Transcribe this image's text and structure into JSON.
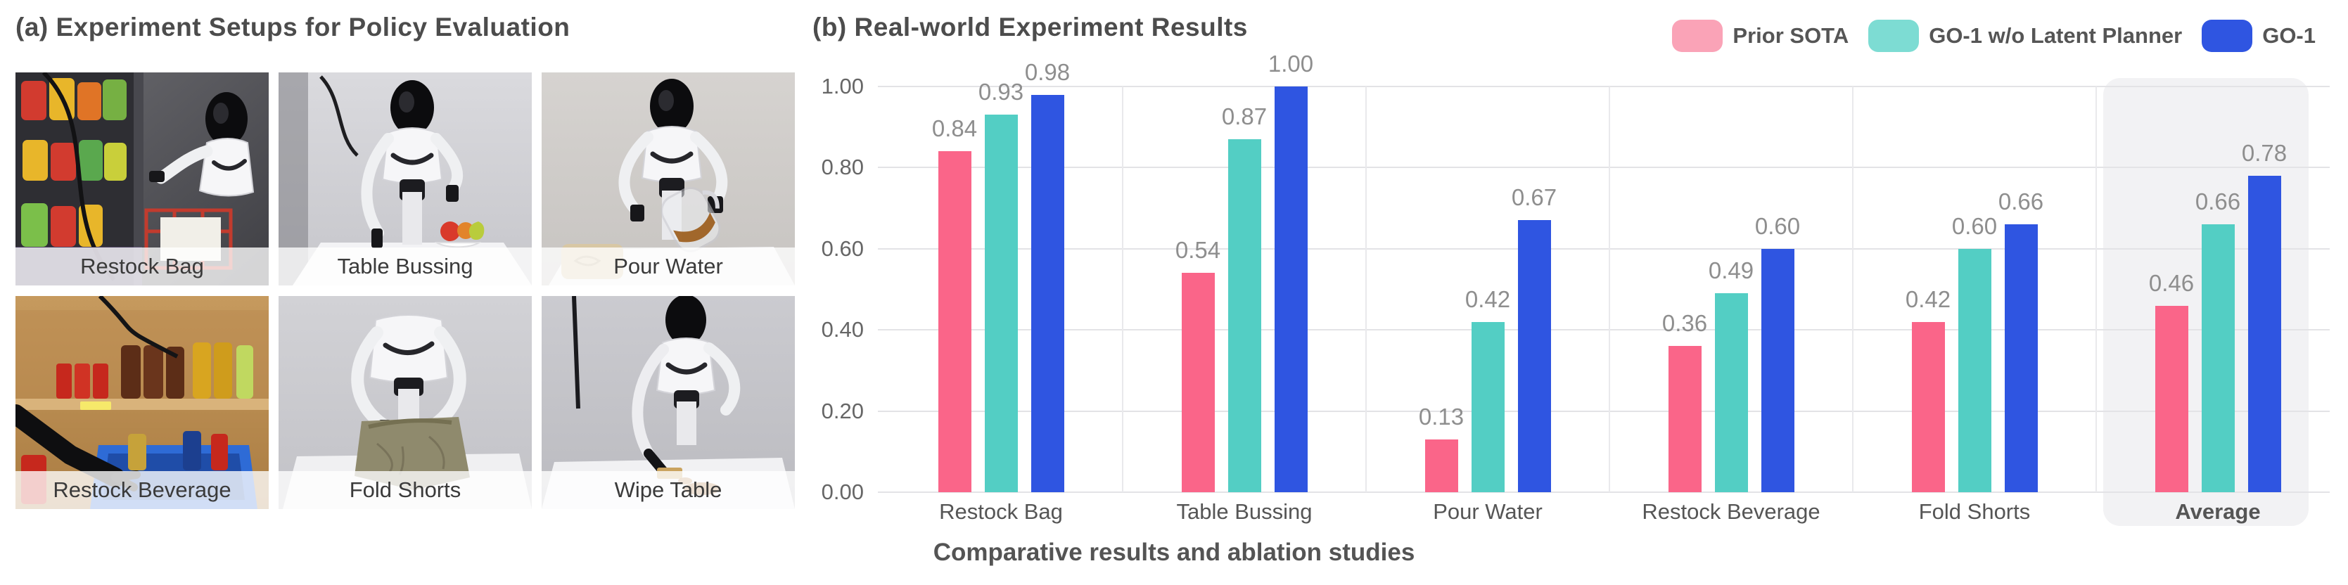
{
  "left": {
    "title": "(a) Experiment Setups for Policy Evaluation",
    "photos": [
      {
        "label": "Restock Bag"
      },
      {
        "label": "Table Bussing"
      },
      {
        "label": "Pour Water"
      },
      {
        "label": "Restock Beverage"
      },
      {
        "label": "Fold Shorts"
      },
      {
        "label": "Wipe Table"
      }
    ]
  },
  "right": {
    "title": "(b) Real-world Experiment Results",
    "caption": "Comparative results and ablation studies"
  },
  "chart_data": {
    "type": "bar",
    "title": "(b) Real-world Experiment Results",
    "categories": [
      "Restock Bag",
      "Table Bussing",
      "Pour Water",
      "Restock Beverage",
      "Fold Shorts",
      "Average"
    ],
    "series": [
      {
        "name": "Prior SOTA",
        "color": "#FA6589",
        "legend_color": "#FAA3B7",
        "values": [
          0.84,
          0.54,
          0.13,
          0.36,
          0.42,
          0.46
        ]
      },
      {
        "name": "GO-1 w/o Latent Planner",
        "color": "#53CEC4",
        "legend_color": "#7DDCD3",
        "values": [
          0.93,
          0.87,
          0.42,
          0.49,
          0.6,
          0.66
        ]
      },
      {
        "name": "GO-1",
        "color": "#2F55E1",
        "legend_color": "#2F55E1",
        "values": [
          0.98,
          1.0,
          0.67,
          0.6,
          0.66,
          0.78
        ]
      }
    ],
    "ylim": [
      0,
      1.0
    ],
    "yticks": [
      0.0,
      0.2,
      0.4,
      0.6,
      0.8,
      1.0
    ],
    "value_label_format": "0.00",
    "grid": true,
    "legend_position": "top-right",
    "highlighted_category": "Average",
    "highlight_color": "#f2f2f4"
  }
}
